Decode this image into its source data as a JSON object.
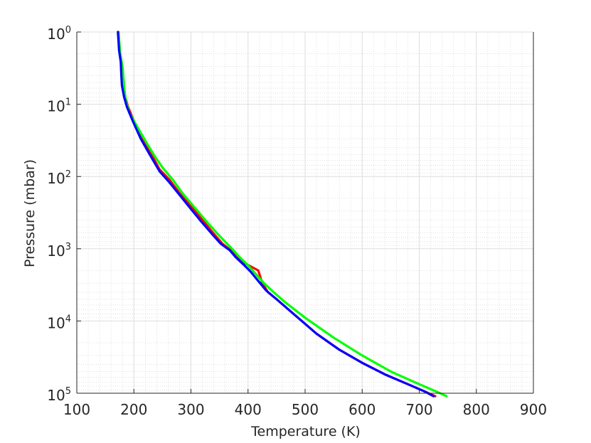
{
  "chart_data": {
    "type": "line",
    "title": "",
    "xlabel": "Temperature (K)",
    "ylabel": "Pressure (mbar)",
    "xlim": [
      100,
      900
    ],
    "ylim": [
      1,
      100000
    ],
    "yscale": "log",
    "y_reversed": true,
    "grid": true,
    "minor_grid": true,
    "legend": "none",
    "x_ticks": [
      "100",
      "200",
      "300",
      "400",
      "500",
      "600",
      "700",
      "800",
      "900"
    ],
    "y_ticks": [
      {
        "value": 1,
        "base": "10",
        "exp": "0"
      },
      {
        "value": 10,
        "base": "10",
        "exp": "1"
      },
      {
        "value": 100,
        "base": "10",
        "exp": "2"
      },
      {
        "value": 1000,
        "base": "10",
        "exp": "3"
      },
      {
        "value": 10000,
        "base": "10",
        "exp": "4"
      },
      {
        "value": 100000,
        "base": "10",
        "exp": "5"
      }
    ],
    "series": [
      {
        "color": "#ff0000",
        "x": [
          173,
          175,
          178,
          180,
          181,
          185,
          190,
          200,
          215,
          230,
          245,
          262,
          280,
          300,
          320,
          340,
          355,
          370,
          382,
          395,
          418,
          425,
          435,
          450,
          480,
          520,
          560,
          600,
          640,
          680,
          710,
          728
        ],
        "y": [
          1,
          1.8,
          2.5,
          4,
          5.5,
          8,
          11,
          17,
          30,
          48,
          80,
          110,
          170,
          260,
          400,
          620,
          850,
          1050,
          1300,
          1600,
          2000,
          3000,
          4000,
          5000,
          8000,
          15000,
          25000,
          38000,
          55000,
          75000,
          95000,
          110000
        ]
      },
      {
        "color": "#00ff00",
        "x": [
          173,
          176,
          180,
          182,
          183,
          186,
          192,
          205,
          222,
          235,
          250,
          268,
          285,
          305,
          325,
          345,
          360,
          372,
          385,
          400,
          415,
          428,
          445,
          465,
          500,
          550,
          600,
          650,
          700,
          730,
          748
        ],
        "y": [
          1,
          2,
          3,
          4.5,
          6,
          9,
          13,
          20,
          34,
          50,
          75,
          110,
          170,
          260,
          400,
          600,
          800,
          1000,
          1300,
          1700,
          2300,
          3000,
          4000,
          5500,
          9000,
          17000,
          30000,
          50000,
          75000,
          95000,
          110000
        ]
      },
      {
        "color": "#0000ff",
        "x": [
          172,
          174,
          177,
          178,
          179,
          183,
          188,
          198,
          212,
          228,
          245,
          262,
          280,
          298,
          318,
          338,
          352,
          368,
          378,
          392,
          405,
          418,
          432,
          450,
          480,
          520,
          560,
          600,
          640,
          680,
          710,
          725
        ],
        "y": [
          1,
          1.8,
          2.6,
          4,
          5.5,
          8,
          11,
          17,
          30,
          50,
          85,
          120,
          180,
          270,
          420,
          640,
          850,
          1050,
          1300,
          1650,
          2100,
          2800,
          3800,
          5000,
          8000,
          15000,
          25000,
          38000,
          55000,
          75000,
          95000,
          110000
        ]
      }
    ]
  }
}
